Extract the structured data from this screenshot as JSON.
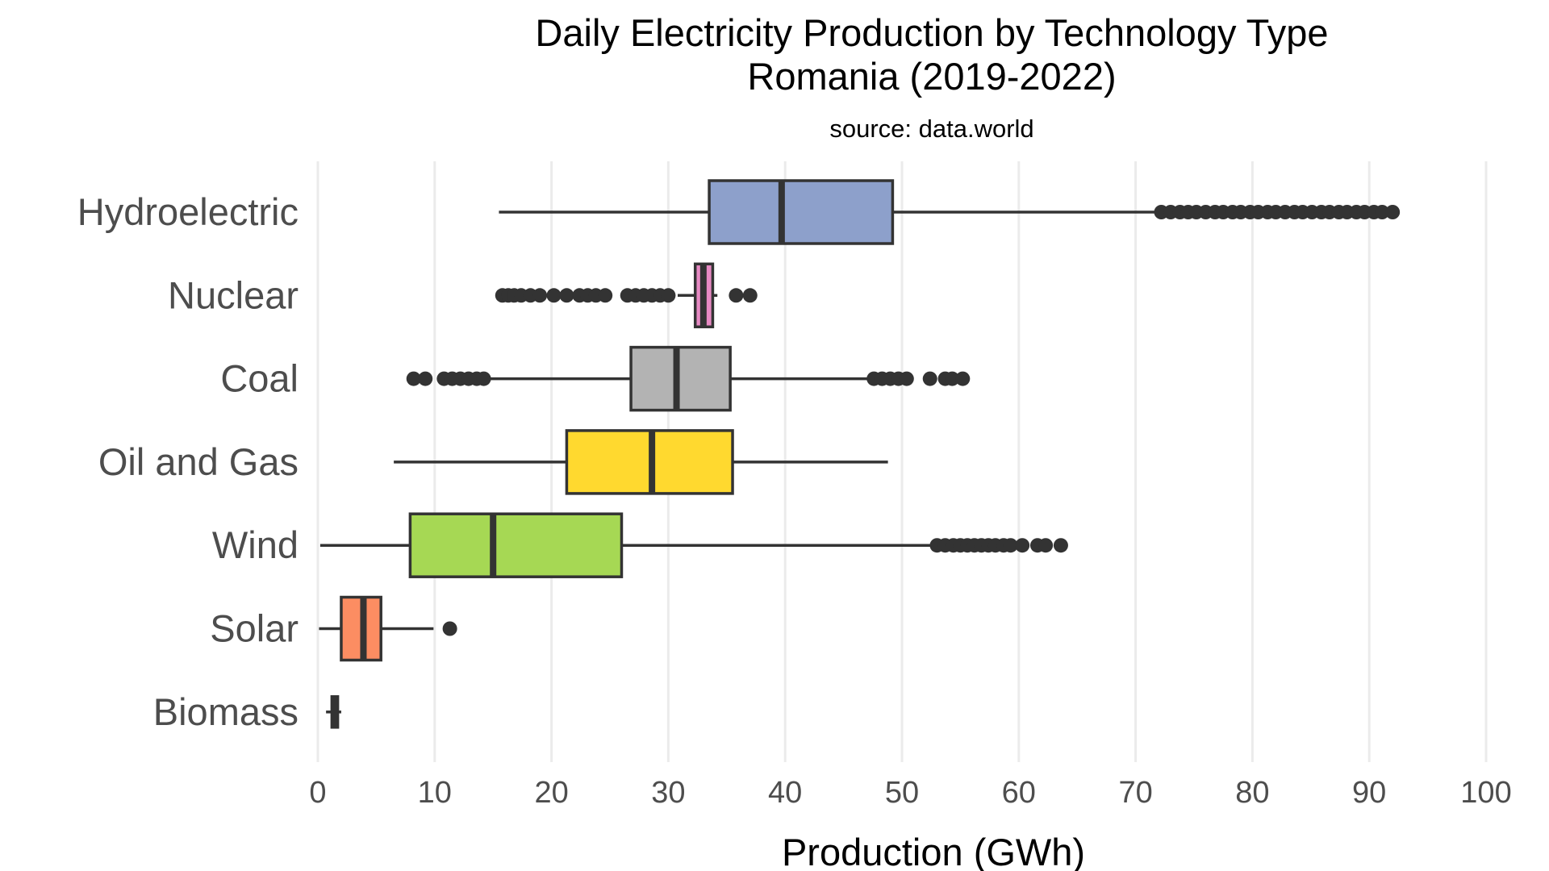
{
  "chart_data": {
    "type": "boxplot",
    "title": "Daily Electricity Production by Technology Type",
    "title_line2": "Romania (2019-2022)",
    "subtitle": "source: data.world",
    "xlabel": "Production (GWh)",
    "ylabel": "",
    "xlim": [
      0,
      100
    ],
    "xticks": [
      0,
      10,
      20,
      30,
      40,
      50,
      60,
      70,
      80,
      90,
      100
    ],
    "xtick_labels": [
      "0",
      "10",
      "20",
      "30",
      "40",
      "50",
      "60",
      "70",
      "80",
      "90",
      "100"
    ],
    "grid": "vertical major gridlines",
    "legend": "none",
    "orientation": "horizontal",
    "categories": [
      "Hydroelectric",
      "Nuclear",
      "Coal",
      "Oil and Gas",
      "Wind",
      "Solar",
      "Biomass"
    ],
    "series": [
      {
        "category": "Hydroelectric",
        "color": "#8da0cb",
        "whisker_low": 15.5,
        "q1": 33.5,
        "median": 39.7,
        "q3": 49.2,
        "whisker_high": 72.0,
        "outliers": [
          72.2,
          73.0,
          73.8,
          74.5,
          75.2,
          76.0,
          76.8,
          77.5,
          78.3,
          79.0,
          79.8,
          80.5,
          81.3,
          82.0,
          82.8,
          83.6,
          84.3,
          85.1,
          85.9,
          86.6,
          87.4,
          88.1,
          88.9,
          89.6,
          90.4,
          91.1,
          92.0
        ]
      },
      {
        "category": "Nuclear",
        "color": "#e78ac3",
        "whisker_low": 30.8,
        "q1": 32.3,
        "median": 33.0,
        "q3": 33.8,
        "whisker_high": 34.2,
        "outliers": [
          15.8,
          16.3,
          16.8,
          17.4,
          18.2,
          19.0,
          20.2,
          21.3,
          22.4,
          23.1,
          23.8,
          24.6,
          26.5,
          27.2,
          27.9,
          28.6,
          29.3,
          30.0,
          35.8,
          37.0
        ]
      },
      {
        "category": "Coal",
        "color": "#b3b3b3",
        "whisker_low": 14.8,
        "q1": 26.8,
        "median": 30.7,
        "q3": 35.3,
        "whisker_high": 47.3,
        "outliers": [
          8.2,
          9.2,
          10.8,
          11.5,
          12.2,
          12.9,
          13.6,
          14.2,
          47.6,
          48.3,
          49.0,
          49.7,
          50.4,
          52.4,
          53.7,
          54.3,
          55.2
        ]
      },
      {
        "category": "Oil and Gas",
        "color": "#ffd92f",
        "whisker_low": 6.5,
        "q1": 21.3,
        "median": 28.6,
        "q3": 35.5,
        "whisker_high": 48.8,
        "outliers": []
      },
      {
        "category": "Wind",
        "color": "#a6d854",
        "whisker_low": 0.2,
        "q1": 7.9,
        "median": 15.0,
        "q3": 26.0,
        "whisker_high": 52.8,
        "outliers": [
          53.0,
          53.7,
          54.4,
          55.0,
          55.6,
          56.2,
          56.8,
          57.4,
          58.0,
          58.7,
          59.3,
          60.3,
          61.6,
          62.3,
          63.6
        ]
      },
      {
        "category": "Solar",
        "color": "#fc8d62",
        "whisker_low": 0.1,
        "q1": 2.0,
        "median": 3.9,
        "q3": 5.4,
        "whisker_high": 9.9,
        "outliers": [
          11.3
        ]
      },
      {
        "category": "Biomass",
        "color": "#333333",
        "whisker_low": 0.7,
        "q1": 1.2,
        "median": 1.4,
        "q3": 1.7,
        "whisker_high": 2.0,
        "outliers": []
      }
    ]
  }
}
